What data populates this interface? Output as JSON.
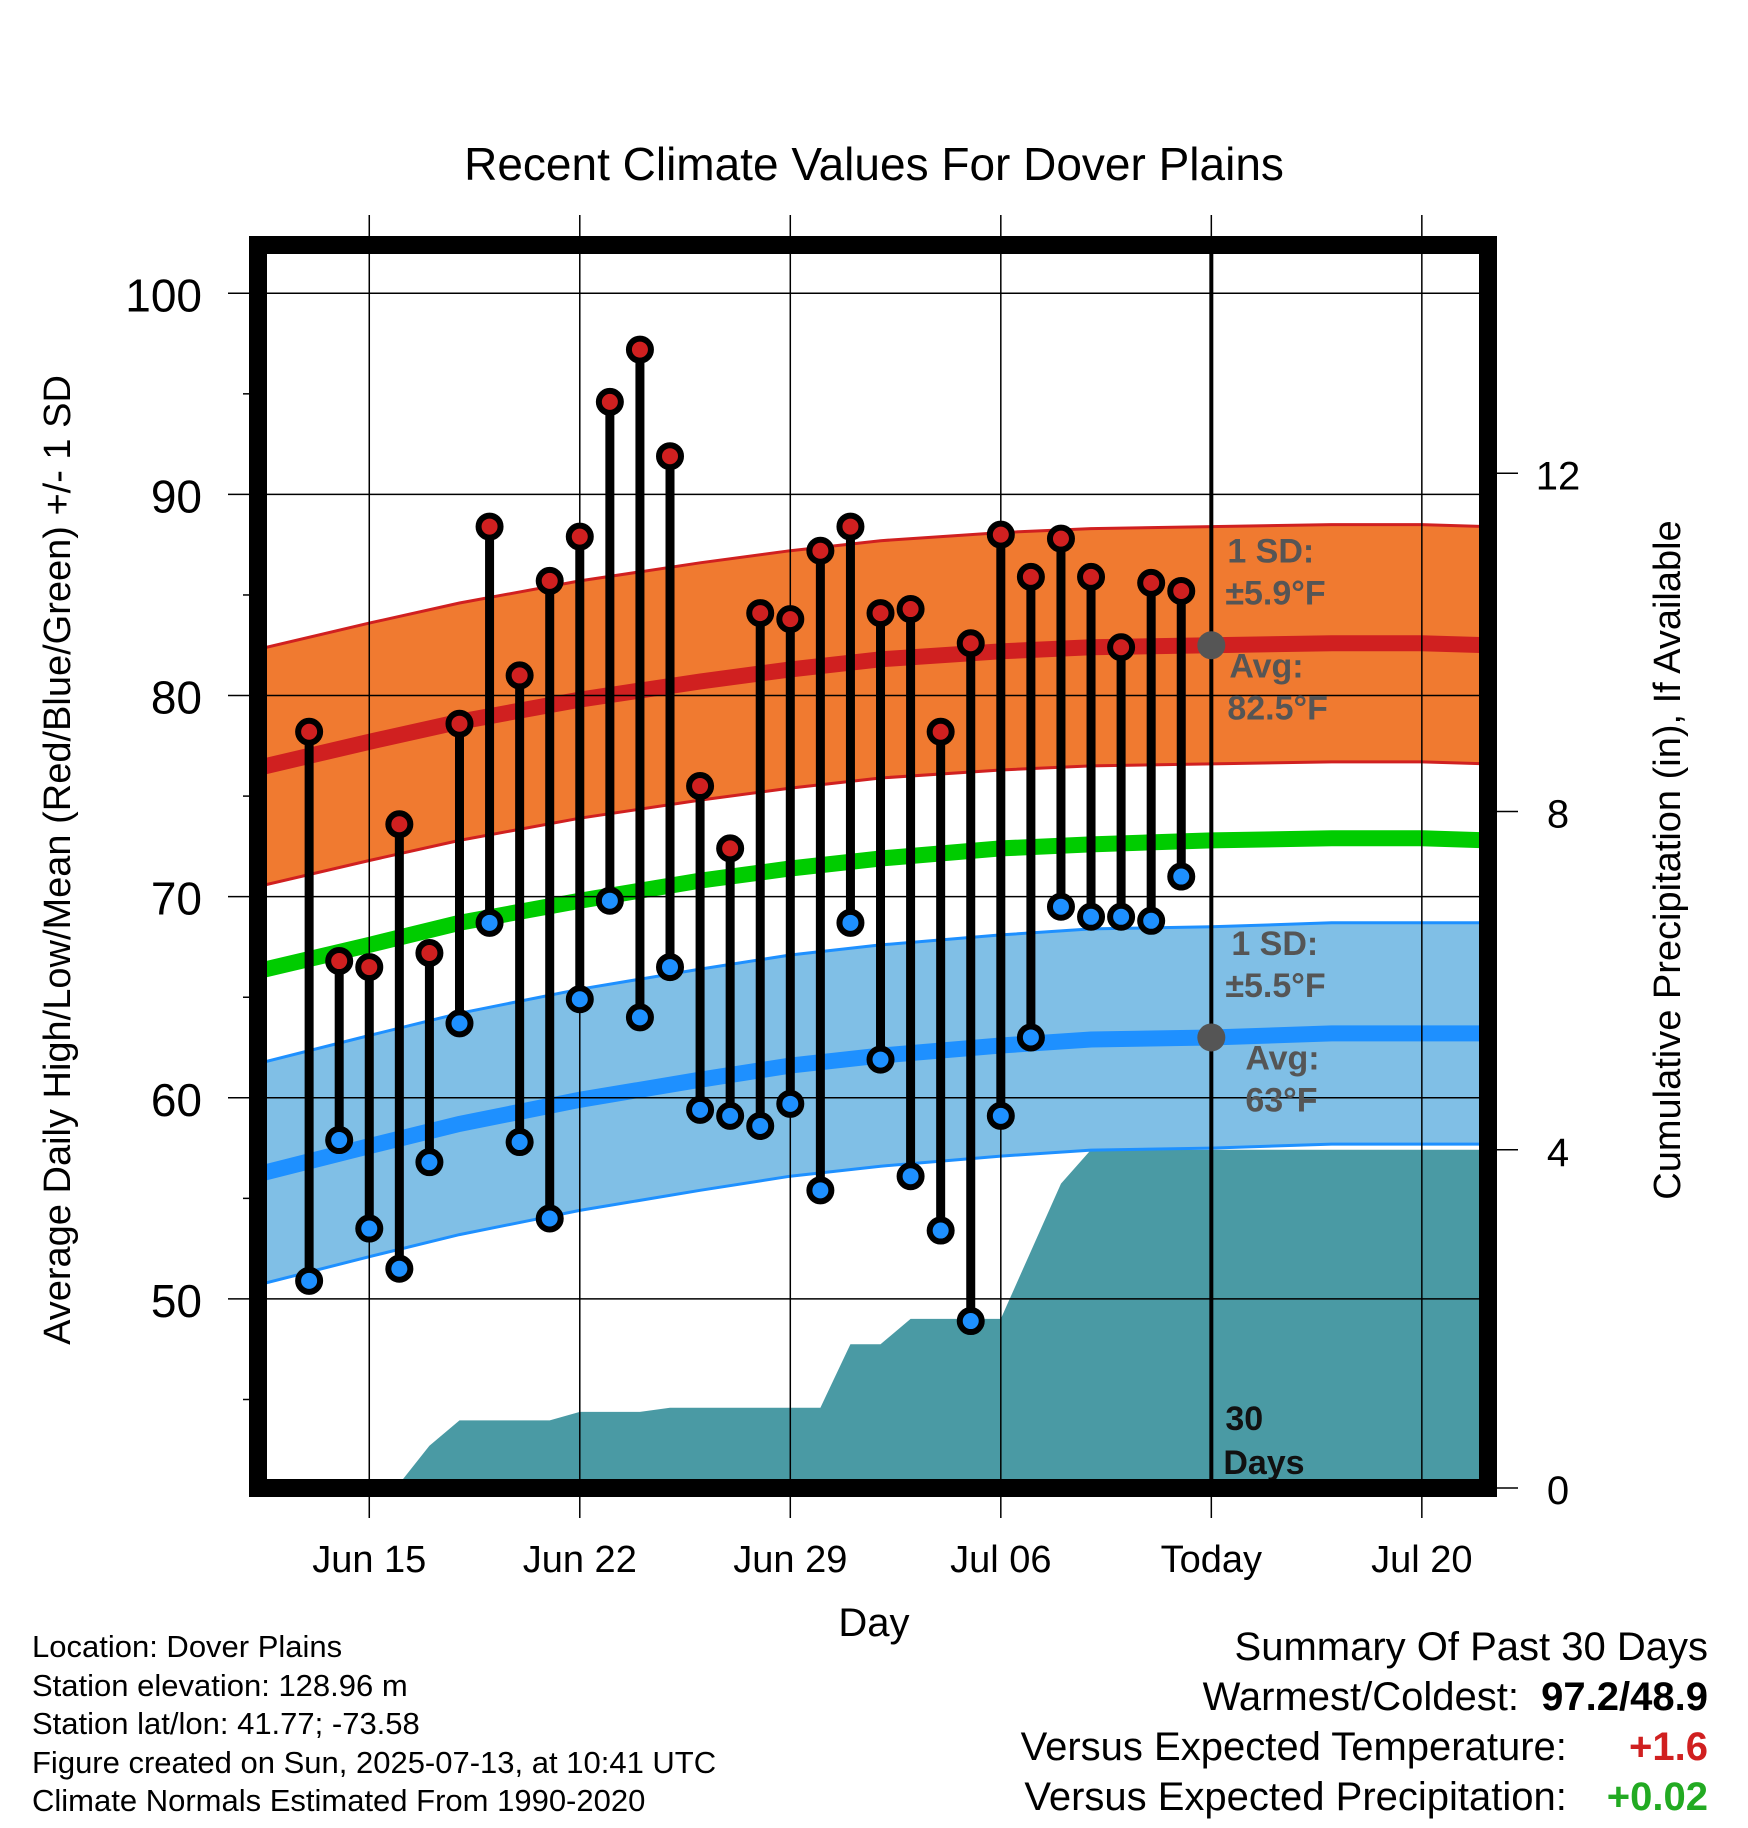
{
  "title": "Recent Climate Values For Dover Plains",
  "xlabel": "Day",
  "ylabel_left": "Average Daily High/Low/Mean (Red/Blue/Green) +/- 1 SD",
  "ylabel_right": "Cumulative Precipitation (in), If Available",
  "annotations": {
    "high_sd_line1": "1 SD:",
    "high_sd_line2": "±5.9°F",
    "high_avg_line1": "Avg:",
    "high_avg_line2": "82.5°F",
    "low_sd_line1": "1 SD:",
    "low_sd_line2": "±5.5°F",
    "low_avg_line1": "Avg:",
    "low_avg_line2": "63°F",
    "days_line1": "30",
    "days_line2": "Days"
  },
  "footer_left": [
    "Location: Dover Plains",
    "Station elevation: 128.96 m",
    "Station lat/lon: 41.77; -73.58",
    "Figure created on Sun, 2025-07-13, at 10:41 UTC",
    "Climate Normals Estimated From 1990-2020"
  ],
  "summary": {
    "heading": "Summary Of Past 30 Days",
    "warmest_coldest_label": "Warmest/Coldest:",
    "warmest_coldest_value": "97.2/48.9",
    "temp_label": "Versus Expected Temperature:",
    "temp_value": "+1.6",
    "precip_label": "Versus Expected Precipitation:",
    "precip_value": "+0.02"
  },
  "colors": {
    "high_band": "#f07a30",
    "high_line": "#d02020",
    "mean_line": "#00cc00",
    "low_band": "#80bfe6",
    "low_line": "#1e90ff",
    "precip_fill": "#4a9aa4",
    "high_marker": "#d02020",
    "low_marker": "#1e90ff",
    "annotation": "#555555",
    "temp_positive": "#d02020",
    "precip_positive": "#22aa22"
  },
  "chart_data": {
    "type": "line",
    "x_unit": "day offset from Jun 12",
    "x_tick_labels": [
      {
        "x": 3,
        "label": "Jun 15"
      },
      {
        "x": 10,
        "label": "Jun 22"
      },
      {
        "x": 17,
        "label": "Jun 29"
      },
      {
        "x": 24,
        "label": "Jul 06"
      },
      {
        "x": 31,
        "label": "Today"
      },
      {
        "x": 38,
        "label": "Jul 20"
      }
    ],
    "xlim": [
      -0.7,
      40.2
    ],
    "ylim_left": [
      40.6,
      102.4
    ],
    "y_ticks_left": [
      50,
      60,
      70,
      80,
      90,
      100
    ],
    "y_minor_left": [
      45,
      55,
      65,
      75,
      85,
      95
    ],
    "ylim_right": [
      0,
      14.7
    ],
    "y_ticks_right": [
      0,
      4,
      8,
      12
    ],
    "today_x": 31,
    "daily": {
      "x": [
        1,
        2,
        3,
        4,
        5,
        6,
        7,
        8,
        9,
        10,
        11,
        12,
        13,
        14,
        15,
        16,
        17,
        18,
        19,
        20,
        21,
        22,
        23,
        24,
        25,
        26,
        27,
        28,
        29,
        30
      ],
      "high": [
        78.2,
        66.8,
        66.5,
        73.6,
        67.2,
        78.6,
        88.4,
        81.0,
        85.7,
        87.9,
        94.6,
        97.2,
        91.9,
        75.5,
        72.4,
        84.1,
        83.8,
        87.2,
        88.4,
        84.1,
        84.3,
        78.2,
        82.6,
        88.0,
        85.9,
        87.8,
        85.9,
        82.4,
        85.6,
        85.2
      ],
      "low": [
        50.9,
        57.9,
        53.5,
        51.5,
        56.8,
        63.7,
        68.7,
        57.8,
        54.0,
        64.9,
        69.8,
        64.0,
        66.5,
        59.4,
        59.1,
        58.6,
        59.7,
        55.4,
        68.7,
        61.9,
        56.1,
        53.4,
        48.9,
        59.1,
        63.0,
        69.5,
        69.0,
        69.0,
        68.8,
        71.0
      ]
    },
    "normals": {
      "x": [
        -0.7,
        3,
        6,
        10,
        14,
        17,
        20,
        24,
        27,
        31,
        35,
        38,
        40.2
      ],
      "high_avg": [
        76.4,
        77.7,
        78.7,
        79.8,
        80.7,
        81.3,
        81.8,
        82.2,
        82.4,
        82.5,
        82.6,
        82.6,
        82.5
      ],
      "high_sd": 5.9,
      "low_avg": [
        56.2,
        57.6,
        58.7,
        59.9,
        60.9,
        61.6,
        62.1,
        62.6,
        62.9,
        63.0,
        63.2,
        63.2,
        63.2
      ],
      "low_sd": 5.5,
      "mean_avg": [
        66.3,
        67.6,
        68.7,
        69.8,
        70.8,
        71.4,
        71.9,
        72.4,
        72.6,
        72.8,
        72.9,
        72.9,
        72.8
      ]
    },
    "precip": {
      "x": [
        -0.7,
        3.8,
        4,
        5,
        6,
        9,
        10,
        12,
        13,
        16,
        18,
        19,
        20,
        21,
        22,
        23,
        24,
        25,
        26,
        27,
        28,
        31,
        40.2
      ],
      "cumulative": [
        0,
        0,
        0.05,
        0.5,
        0.8,
        0.8,
        0.9,
        0.9,
        0.95,
        0.95,
        0.95,
        1.7,
        1.7,
        2.0,
        2.0,
        2.0,
        2.0,
        2.8,
        3.6,
        4.0,
        4.0,
        4.0,
        4.0
      ]
    },
    "legend": "none",
    "grid": true
  }
}
